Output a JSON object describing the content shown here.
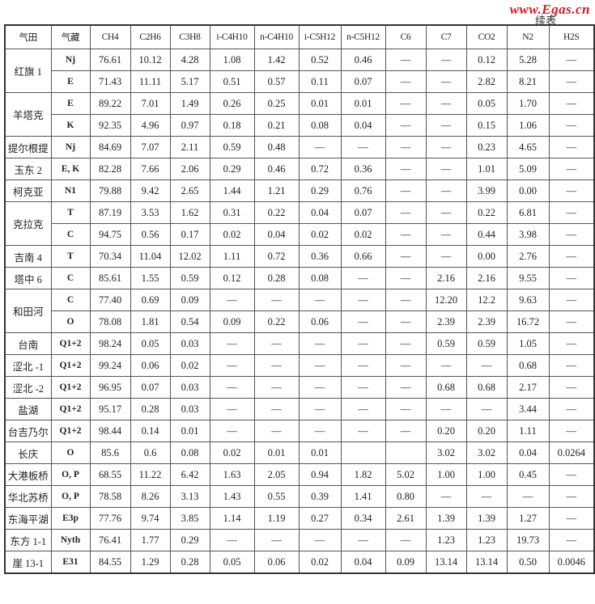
{
  "watermark": "www.Egas.cn",
  "continued_label": "续表",
  "headers": [
    "气田",
    "气藏",
    "CH4",
    "C2H6",
    "C3H8",
    "i-C4H10",
    "n-C4H10",
    "i-C5H12",
    "n-C5H12",
    "C6",
    "C7",
    "CO2",
    "N2",
    "H2S"
  ],
  "rows": [
    {
      "field": "红旗 1",
      "span": 2,
      "res": "Nj",
      "v": [
        "76.61",
        "10.12",
        "4.28",
        "1.08",
        "1.42",
        "0.52",
        "0.46",
        "—",
        "—",
        "0.12",
        "5.28",
        "—"
      ]
    },
    {
      "res": "E",
      "v": [
        "71.43",
        "11.11",
        "5.17",
        "0.51",
        "0.57",
        "0.11",
        "0.07",
        "—",
        "—",
        "2.82",
        "8.21",
        "—"
      ]
    },
    {
      "field": "羊塔克",
      "span": 2,
      "res": "E",
      "v": [
        "89.22",
        "7.01",
        "1.49",
        "0.26",
        "0.25",
        "0.01",
        "0.01",
        "—",
        "—",
        "0.05",
        "1.70",
        "—"
      ]
    },
    {
      "res": "K",
      "v": [
        "92.35",
        "4.96",
        "0.97",
        "0.18",
        "0.21",
        "0.08",
        "0.04",
        "—",
        "—",
        "0.15",
        "1.06",
        "—"
      ]
    },
    {
      "field": "提尔根提",
      "span": 1,
      "res": "Nj",
      "v": [
        "84.69",
        "7.07",
        "2.11",
        "0.59",
        "0.48",
        "—",
        "—",
        "—",
        "—",
        "0.23",
        "4.65",
        "—"
      ]
    },
    {
      "field": "玉东 2",
      "span": 1,
      "res": "E, K",
      "v": [
        "82.28",
        "7.66",
        "2.06",
        "0.29",
        "0.46",
        "0.72",
        "0.36",
        "—",
        "—",
        "1.01",
        "5.09",
        "—"
      ]
    },
    {
      "field": "柯克亚",
      "span": 1,
      "res": "N1",
      "v": [
        "79.88",
        "9.42",
        "2.65",
        "1.44",
        "1.21",
        "0.29",
        "0.76",
        "—",
        "—",
        "3.99",
        "0.00",
        "—"
      ]
    },
    {
      "field": "克拉克",
      "span": 2,
      "res": "T",
      "v": [
        "87.19",
        "3.53",
        "1.62",
        "0.31",
        "0.22",
        "0.04",
        "0.07",
        "—",
        "—",
        "0.22",
        "6.81",
        "—"
      ]
    },
    {
      "res": "C",
      "v": [
        "94.75",
        "0.56",
        "0.17",
        "0.02",
        "0.04",
        "0.02",
        "0.02",
        "—",
        "—",
        "0.44",
        "3.98",
        "—"
      ]
    },
    {
      "field": "吉南 4",
      "span": 1,
      "res": "T",
      "v": [
        "70.34",
        "11.04",
        "12.02",
        "1.11",
        "0.72",
        "0.36",
        "0.66",
        "—",
        "—",
        "0.00",
        "2.76",
        "—"
      ]
    },
    {
      "field": "塔中 6",
      "span": 1,
      "res": "C",
      "v": [
        "85.61",
        "1.55",
        "0.59",
        "0.12",
        "0.28",
        "0.08",
        "—",
        "—",
        "2.16",
        "2.16",
        "9.55",
        "—"
      ]
    },
    {
      "field": "和田河",
      "span": 2,
      "res": "C",
      "v": [
        "77.40",
        "0.69",
        "0.09",
        "—",
        "—",
        "—",
        "—",
        "—",
        "12.20",
        "12.2",
        "9.63",
        "—"
      ]
    },
    {
      "res": "O",
      "v": [
        "78.08",
        "1.81",
        "0.54",
        "0.09",
        "0.22",
        "0.06",
        "—",
        "—",
        "2.39",
        "2.39",
        "16.72",
        "—"
      ]
    },
    {
      "field": "台南",
      "span": 1,
      "res": "Q1+2",
      "v": [
        "98.24",
        "0.05",
        "0.03",
        "—",
        "—",
        "—",
        "—",
        "—",
        "0.59",
        "0.59",
        "1.05",
        "—"
      ]
    },
    {
      "field": "涩北 -1",
      "span": 1,
      "res": "Q1+2",
      "v": [
        "99.24",
        "0.06",
        "0.02",
        "—",
        "—",
        "—",
        "—",
        "—",
        "—",
        "—",
        "0.68",
        "—"
      ]
    },
    {
      "field": "涩北 -2",
      "span": 1,
      "res": "Q1+2",
      "v": [
        "96.95",
        "0.07",
        "0.03",
        "—",
        "—",
        "—",
        "—",
        "—",
        "0.68",
        "0.68",
        "2.17",
        "—"
      ]
    },
    {
      "field": "盐湖",
      "span": 1,
      "res": "Q1+2",
      "v": [
        "95.17",
        "0.28",
        "0.03",
        "—",
        "—",
        "—",
        "—",
        "—",
        "—",
        "—",
        "3.44",
        "—"
      ]
    },
    {
      "field": "台吉乃尔",
      "span": 1,
      "res": "Q1+2",
      "v": [
        "98.44",
        "0.14",
        "0.01",
        "—",
        "—",
        "—",
        "—",
        "—",
        "0.20",
        "0.20",
        "1.11",
        "—"
      ]
    },
    {
      "field": "长庆",
      "span": 1,
      "res": "O",
      "v": [
        "85.6",
        "0.6",
        "0.08",
        "0.02",
        "0.01",
        "0.01",
        "",
        "",
        "3.02",
        "3.02",
        "0.04",
        "0.0264"
      ]
    },
    {
      "field": "大港板桥",
      "span": 1,
      "res": "O, P",
      "v": [
        "68.55",
        "11.22",
        "6.42",
        "1.63",
        "2.05",
        "0.94",
        "1.82",
        "5.02",
        "1.00",
        "1.00",
        "0.45",
        "—"
      ]
    },
    {
      "field": "华北苏桥",
      "span": 1,
      "res": "O, P",
      "v": [
        "78.58",
        "8.26",
        "3.13",
        "1.43",
        "0.55",
        "0.39",
        "1.41",
        "0.80",
        "—",
        "—",
        "—",
        "—"
      ]
    },
    {
      "field": "东海平湖",
      "span": 1,
      "res": "E3p",
      "v": [
        "77.76",
        "9.74",
        "3.85",
        "1.14",
        "1.19",
        "0.27",
        "0.34",
        "2.61",
        "1.39",
        "1.39",
        "1.27",
        "—"
      ]
    },
    {
      "field": "东方 1-1",
      "span": 1,
      "res": "Nyth",
      "v": [
        "76.41",
        "1.77",
        "0.29",
        "—",
        "—",
        "—",
        "—",
        "—",
        "1.23",
        "1.23",
        "19.73",
        "—"
      ]
    },
    {
      "field": "崖 13-1",
      "span": 1,
      "res": "E31",
      "v": [
        "84.55",
        "1.29",
        "0.28",
        "0.05",
        "0.06",
        "0.02",
        "0.04",
        "0.09",
        "13.14",
        "13.14",
        "0.50",
        "0.0046"
      ]
    }
  ]
}
